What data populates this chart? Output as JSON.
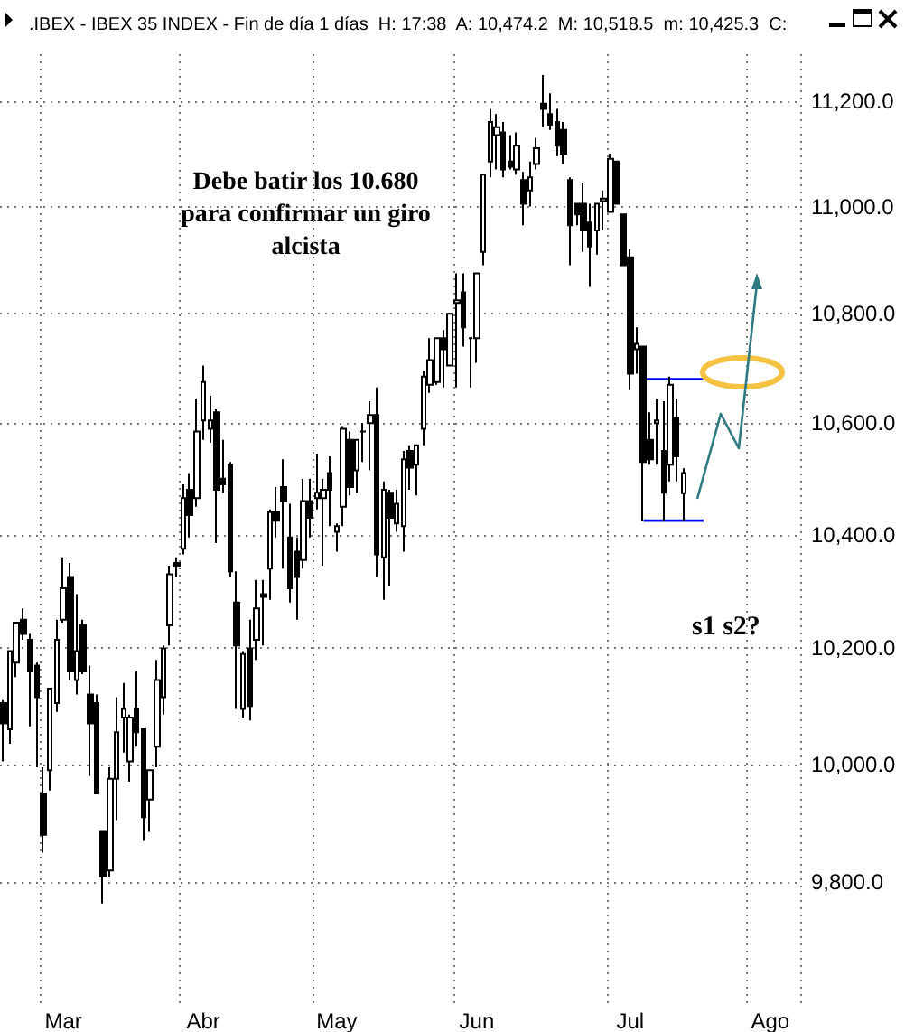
{
  "chart_data": {
    "type": "candlestick",
    "title": ".IBEX - IBEX 35 INDEX - Fin de día 1 días  H: 17:38  A: 10,474.2  M: 10,518.5  m: 10,425.3  C:",
    "categories": [
      null,
      null,
      null,
      null,
      null,
      null,
      null,
      null,
      null,
      "Mar",
      null,
      null,
      null,
      null,
      null,
      null,
      null,
      null,
      null,
      null,
      null,
      null,
      null,
      null,
      null,
      null,
      null,
      null,
      null,
      null,
      "Abr",
      null,
      null,
      null,
      null,
      null,
      null,
      null,
      null,
      null,
      null,
      null,
      null,
      null,
      null,
      null,
      null,
      null,
      null,
      null,
      "May",
      null,
      null,
      null,
      null,
      null,
      null,
      null,
      null,
      null,
      null,
      null,
      null,
      null,
      null,
      null,
      null,
      null,
      null,
      null,
      null,
      "Jun",
      null,
      null,
      null,
      null,
      null,
      null,
      null,
      null,
      null,
      null,
      null,
      null,
      null,
      null,
      null,
      null,
      null,
      null,
      null,
      null,
      null,
      null,
      "Jul",
      null,
      null,
      null,
      null,
      null,
      null,
      null,
      null,
      null,
      null,
      null,
      null,
      null,
      null,
      null,
      null,
      null,
      null,
      null,
      null,
      "Ago",
      null,
      null,
      null,
      null
    ],
    "ohlc": [
      [
        10105,
        10110,
        10005,
        10070
      ],
      [
        10060,
        10195,
        10035,
        10195
      ],
      [
        10175,
        10245,
        10150,
        10245
      ],
      [
        10250,
        10270,
        10215,
        10225
      ],
      [
        10215,
        10225,
        10065,
        10160
      ],
      [
        10170,
        10175,
        9995,
        10115
      ],
      [
        9950,
        9995,
        9850,
        9880
      ],
      [
        9990,
        10130,
        9955,
        10130
      ],
      [
        10105,
        10250,
        10090,
        10215
      ],
      [
        10250,
        10360,
        10245,
        10305
      ],
      [
        10325,
        10350,
        10145,
        10160
      ],
      [
        10145,
        10295,
        10120,
        10195
      ],
      [
        10240,
        10250,
        10155,
        10160
      ],
      [
        10120,
        10170,
        9980,
        10070
      ],
      [
        10105,
        10120,
        9950,
        9950
      ],
      [
        9885,
        9885,
        9765,
        9810
      ],
      [
        9820,
        9995,
        9810,
        9975
      ],
      [
        9975,
        10115,
        9905,
        10055
      ],
      [
        10080,
        10140,
        10020,
        10095
      ],
      [
        10005,
        10085,
        9970,
        10080
      ],
      [
        10095,
        10160,
        10030,
        10055
      ],
      [
        10060,
        10060,
        9870,
        9910
      ],
      [
        9940,
        9990,
        9885,
        9990
      ],
      [
        10030,
        10180,
        9995,
        10145
      ],
      [
        10115,
        10205,
        10085,
        10200
      ],
      [
        10240,
        10345,
        10205,
        10330
      ],
      [
        10350,
        10360,
        10325,
        10345
      ],
      [
        10375,
        10490,
        10365,
        10465
      ],
      [
        10480,
        10510,
        10395,
        10435
      ],
      [
        10465,
        10645,
        10450,
        10585
      ],
      [
        10605,
        10705,
        10570,
        10675
      ],
      [
        10590,
        10650,
        10565,
        10605
      ],
      [
        10620,
        10625,
        10385,
        10480
      ],
      [
        10500,
        10570,
        10475,
        10490
      ],
      [
        10525,
        10530,
        10325,
        10335
      ],
      [
        10280,
        10335,
        10095,
        10205
      ],
      [
        10095,
        10195,
        10080,
        10190
      ],
      [
        10200,
        10250,
        10075,
        10100
      ],
      [
        10215,
        10320,
        10180,
        10270
      ],
      [
        10295,
        10320,
        10205,
        10290
      ],
      [
        10340,
        10445,
        10285,
        10440
      ],
      [
        10440,
        10485,
        10395,
        10425
      ],
      [
        10485,
        10535,
        10340,
        10460
      ],
      [
        10395,
        10455,
        10280,
        10305
      ],
      [
        10370,
        10395,
        10250,
        10325
      ],
      [
        10355,
        10500,
        10340,
        10460
      ],
      [
        10460,
        10500,
        10395,
        10430
      ],
      [
        10465,
        10545,
        10445,
        10475
      ],
      [
        10465,
        10500,
        10345,
        10480
      ],
      [
        10510,
        10540,
        10415,
        10480
      ],
      [
        10405,
        10420,
        10370,
        10415
      ],
      [
        10450,
        10595,
        10415,
        10590
      ],
      [
        10570,
        10585,
        10470,
        10485
      ],
      [
        10515,
        10570,
        10475,
        10570
      ],
      [
        10585,
        10600,
        10530,
        10585
      ],
      [
        10600,
        10640,
        10515,
        10615
      ],
      [
        10615,
        10665,
        10325,
        10365
      ],
      [
        10360,
        10495,
        10285,
        10480
      ],
      [
        10475,
        10480,
        10310,
        10430
      ],
      [
        10420,
        10480,
        10405,
        10455
      ],
      [
        10415,
        10550,
        10370,
        10535
      ],
      [
        10550,
        10560,
        10480,
        10520
      ],
      [
        10525,
        10560,
        10470,
        10560
      ],
      [
        10590,
        10695,
        10560,
        10685
      ],
      [
        10670,
        10755,
        10655,
        10715
      ],
      [
        10675,
        10755,
        10670,
        10755
      ],
      [
        10755,
        10770,
        10665,
        10735
      ],
      [
        10705,
        10800,
        10705,
        10800
      ],
      [
        10820,
        10875,
        10665,
        10825
      ],
      [
        10840,
        10875,
        10740,
        10775
      ],
      [
        10755,
        10755,
        10665,
        10755
      ],
      [
        10755,
        10875,
        10710,
        10875
      ],
      [
        10915,
        11060,
        10890,
        11060
      ],
      [
        11085,
        11185,
        11055,
        11160
      ],
      [
        11135,
        11175,
        11070,
        11150
      ],
      [
        11140,
        11160,
        11055,
        11070
      ],
      [
        11085,
        11135,
        11070,
        11075
      ],
      [
        11070,
        11140,
        11060,
        11115
      ],
      [
        11050,
        11065,
        10965,
        11005
      ],
      [
        11030,
        11085,
        11000,
        11055
      ],
      [
        11080,
        11130,
        11070,
        11110
      ],
      [
        11195,
        11250,
        11150,
        11185
      ],
      [
        11175,
        11215,
        11145,
        11155
      ],
      [
        11160,
        11185,
        11095,
        11115
      ],
      [
        11145,
        11160,
        11080,
        11100
      ],
      [
        11050,
        11055,
        10890,
        10965
      ],
      [
        11005,
        11005,
        10965,
        10985
      ],
      [
        11005,
        11045,
        10915,
        10955
      ],
      [
        10970,
        11005,
        10850,
        10925
      ],
      [
        10955,
        11005,
        10910,
        11005
      ],
      [
        11010,
        11030,
        10955,
        11015
      ],
      [
        10990,
        11100,
        10990,
        11090
      ],
      [
        11085,
        11085,
        11005,
        11005
      ],
      [
        10985,
        10985,
        10890,
        10890
      ],
      [
        10905,
        10920,
        10660,
        10690
      ],
      [
        10735,
        10775,
        10690,
        10745
      ],
      [
        10740,
        10740,
        10425,
        10530
      ],
      [
        10570,
        10620,
        10525,
        10535
      ],
      [
        10600,
        10645,
        10525,
        10605
      ],
      [
        10550,
        10640,
        10425,
        10475
      ],
      [
        10525,
        10685,
        10495,
        10670
      ],
      [
        10610,
        10645,
        10495,
        10540
      ],
      [
        10474.2,
        10518.5,
        10425.3,
        10510
      ],
      null,
      null,
      null,
      null,
      null,
      null,
      null,
      null,
      null,
      null,
      null,
      null,
      null,
      null,
      null,
      null,
      null
    ],
    "ylim": [
      9600,
      11290
    ],
    "yticks": [
      {
        "value": 9800,
        "label": "9,800.0"
      },
      {
        "value": 10000,
        "label": "10,000.0"
      },
      {
        "value": 10200,
        "label": "10,200.0"
      },
      {
        "value": 10400,
        "label": "10,400.0"
      },
      {
        "value": 10600,
        "label": "10,600.0"
      },
      {
        "value": 10800,
        "label": "10,800.0"
      },
      {
        "value": 11000,
        "label": "11,000.0"
      },
      {
        "value": 11200,
        "label": "11,200.0"
      }
    ],
    "log": "y",
    "grid": true,
    "series": [
      {
        "type": "line",
        "color": "#0000ff",
        "values": [
          null,
          null,
          null,
          null,
          null,
          null,
          null,
          null,
          null,
          null,
          null,
          null,
          null,
          null,
          null,
          null,
          null,
          null,
          null,
          null,
          null,
          null,
          null,
          null,
          null,
          null,
          null,
          null,
          null,
          null,
          null,
          null,
          null,
          null,
          null,
          null,
          null,
          null,
          null,
          null,
          null,
          null,
          null,
          null,
          null,
          null,
          null,
          null,
          null,
          null,
          null,
          null,
          null,
          null,
          null,
          null,
          null,
          null,
          null,
          null,
          null,
          null,
          null,
          null,
          null,
          null,
          null,
          null,
          null,
          null,
          null,
          null,
          null,
          null,
          null,
          null,
          null,
          null,
          null,
          null,
          null,
          null,
          null,
          null,
          null,
          null,
          null,
          null,
          null,
          null,
          null,
          null,
          null,
          null,
          null,
          null,
          10680,
          10680,
          10680,
          10680,
          10680,
          10680,
          10680,
          10680,
          10680,
          10680,
          null,
          null,
          null,
          null,
          null,
          null,
          null,
          null,
          null,
          null,
          null,
          null,
          null,
          null
        ]
      },
      {
        "type": "line",
        "color": "#0000ff",
        "values": [
          null,
          null,
          null,
          null,
          null,
          null,
          null,
          null,
          null,
          null,
          null,
          null,
          null,
          null,
          null,
          null,
          null,
          null,
          null,
          null,
          null,
          null,
          null,
          null,
          null,
          null,
          null,
          null,
          null,
          null,
          null,
          null,
          null,
          null,
          null,
          null,
          null,
          null,
          null,
          null,
          null,
          null,
          null,
          null,
          null,
          null,
          null,
          null,
          null,
          null,
          null,
          null,
          null,
          null,
          null,
          null,
          null,
          null,
          null,
          null,
          null,
          null,
          null,
          null,
          null,
          null,
          null,
          null,
          null,
          null,
          null,
          null,
          null,
          null,
          null,
          null,
          null,
          null,
          null,
          null,
          null,
          null,
          null,
          null,
          null,
          null,
          null,
          null,
          null,
          null,
          null,
          null,
          null,
          null,
          null,
          null,
          10425,
          10425,
          10425,
          10425,
          10425,
          10425,
          10425,
          10425,
          10425,
          10425,
          null,
          null,
          null,
          null,
          null,
          null,
          null,
          null,
          null,
          null,
          null,
          null,
          null,
          null
        ]
      }
    ],
    "annotations": [
      "Debe batir los 10.680\npara confirmar un giro\nalcista",
      "s1 s2?"
    ]
  }
}
